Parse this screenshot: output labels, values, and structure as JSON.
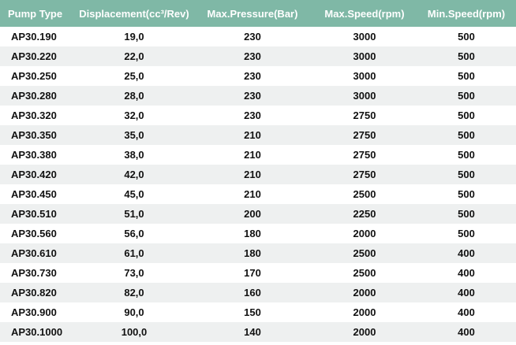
{
  "table": {
    "headers": [
      "Pump Type",
      "Displacement(cc³/Rev)",
      "Max.Pressure(Bar)",
      "Max.Speed(rpm)",
      "Min.Speed(rpm)"
    ],
    "rows": [
      [
        "AP30.190",
        "19,0",
        "230",
        "3000",
        "500"
      ],
      [
        "AP30.220",
        "22,0",
        "230",
        "3000",
        "500"
      ],
      [
        "AP30.250",
        "25,0",
        "230",
        "3000",
        "500"
      ],
      [
        "AP30.280",
        "28,0",
        "230",
        "3000",
        "500"
      ],
      [
        "AP30.320",
        "32,0",
        "230",
        "2750",
        "500"
      ],
      [
        "AP30.350",
        "35,0",
        "210",
        "2750",
        "500"
      ],
      [
        "AP30.380",
        "38,0",
        "210",
        "2750",
        "500"
      ],
      [
        "AP30.420",
        "42,0",
        "210",
        "2750",
        "500"
      ],
      [
        "AP30.450",
        "45,0",
        "210",
        "2500",
        "500"
      ],
      [
        "AP30.510",
        "51,0",
        "200",
        "2250",
        "500"
      ],
      [
        "AP30.560",
        "56,0",
        "180",
        "2000",
        "500"
      ],
      [
        "AP30.610",
        "61,0",
        "180",
        "2500",
        "400"
      ],
      [
        "AP30.730",
        "73,0",
        "170",
        "2500",
        "400"
      ],
      [
        "AP30.820",
        "82,0",
        "160",
        "2000",
        "400"
      ],
      [
        "AP30.900",
        "90,0",
        "150",
        "2000",
        "400"
      ],
      [
        "AP30.1000",
        "100,0",
        "140",
        "2000",
        "400"
      ]
    ]
  },
  "colors": {
    "header_bg": "#7fb8a6",
    "header_text": "#ffffff",
    "row_alt_bg": "#eef0f0",
    "row_bg": "#ffffff"
  }
}
